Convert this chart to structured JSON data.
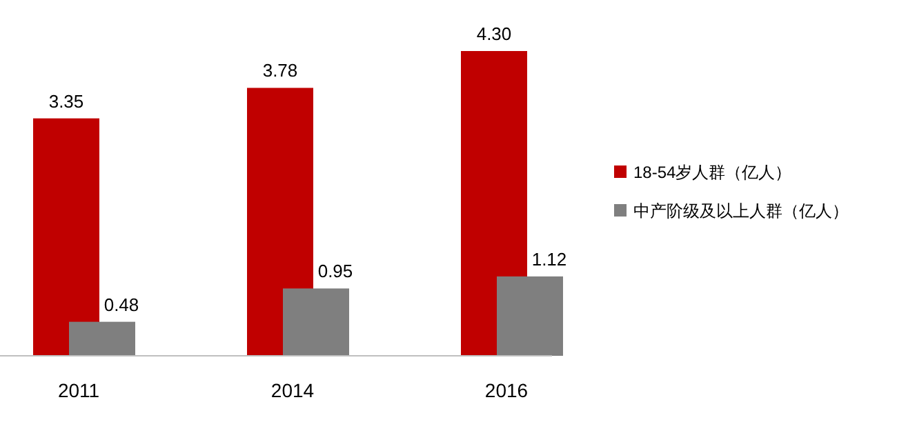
{
  "chart_data": {
    "type": "bar",
    "categories": [
      "2011",
      "2014",
      "2016"
    ],
    "series": [
      {
        "name": "18-54岁人群（亿人）",
        "color": "#c00000",
        "values": [
          3.35,
          3.78,
          4.3
        ],
        "value_labels": [
          "3.35",
          "3.78",
          "4.30"
        ]
      },
      {
        "name": "中产阶级及以上人群（亿人）",
        "color": "#7f7f7f",
        "values": [
          0.48,
          0.95,
          1.12
        ],
        "value_labels": [
          "0.48",
          "0.95",
          "1.12"
        ]
      }
    ],
    "legend": "right"
  }
}
